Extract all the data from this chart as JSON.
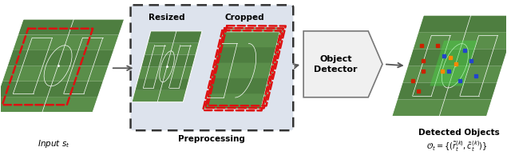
{
  "bg_color": "#ffffff",
  "label_input": "Input $s_t$",
  "label_preprocessing": "Preprocessing",
  "label_detected": "Detected Objects",
  "label_equation": "$\\mathcal{O}_t = \\{(\\tilde{r}_t^{(k)}, \\tilde{c}_t^{(k)})\\}$",
  "label_resized": "Resized",
  "label_cropped": "Cropped",
  "label_object_detector": "Object\nDetector",
  "field_green_light": "#6a9b55",
  "field_green_dark": "#4a7c3f",
  "field_green_stripe1": "#5a8f4a",
  "field_green_stripe2": "#4a7c3f",
  "dashed_box_bg": "#dde3ed",
  "arrow_color": "#555555",
  "red_dashed": "#dd1111",
  "font_size_label": 7.5,
  "font_size_small": 7.5,
  "font_size_eq": 7.0,
  "font_size_title": 7.5
}
